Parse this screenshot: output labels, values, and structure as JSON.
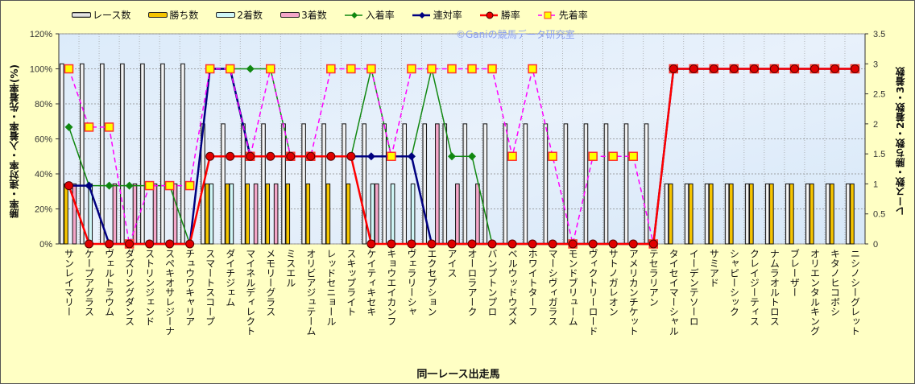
{
  "chart_data": {
    "type": "bar",
    "title": "",
    "watermark": "©Ganiの競馬データ研究室",
    "xlabel": "同一レース出走馬",
    "ylabel_left": "勝率・連対率・入着率・先着率(%)",
    "ylabel_right": "レース数・勝ち数・2着数・3着数",
    "ylim_left": [
      0,
      120
    ],
    "ylim_right": [
      0,
      3.5
    ],
    "yticks_left": [
      "0%",
      "20%",
      "40%",
      "60%",
      "80%",
      "100%",
      "120%"
    ],
    "yticks_right": [
      "0",
      "0.5",
      "1",
      "1.5",
      "2",
      "2.5",
      "3",
      "3.5"
    ],
    "grid": true,
    "legend_position": "top",
    "categories": [
      "サンレイマリー",
      "ケープアグラス",
      "ヴェルトラウム",
      "ダズリングダンス",
      "ストリンジェンド",
      "スペキオサレジーナ",
      "チュウワキャリア",
      "スマートスコープ",
      "ダイチジェム",
      "マイネルディレクト",
      "メモリーグラス",
      "ミスエル",
      "オリビアジュテーム",
      "レッドセニョール",
      "スキップライト",
      "ケイティキセキ",
      "キョウエイカンフ",
      "ヴェラリーシャ",
      "エクセプション",
      "アイス",
      "オーロラアーク",
      "バンプトンプロ",
      "ベルウッドウズメ",
      "ホワイトターフ",
      "マーシヴィガラス",
      "モンドブリューム",
      "ヴィクトリーロード",
      "サトノガレオン",
      "アメリカンチケット",
      "テセラリアン",
      "タイセイマーシャル",
      "イーデンテソーロ",
      "サミアド",
      "シャピーシック",
      "クレイジーティス",
      "ナムラオルトロス",
      "ブレーザー",
      "オリエンタルキング",
      "キタノヒコボシ",
      "ニシノシーグレット"
    ],
    "bar_series": [
      {
        "name": "レース数",
        "axis": "right",
        "color": "#F4F4F4",
        "values": [
          3,
          3,
          3,
          3,
          3,
          3,
          3,
          2,
          2,
          2,
          2,
          2,
          2,
          2,
          2,
          2,
          2,
          2,
          2,
          2,
          2,
          2,
          2,
          2,
          2,
          2,
          2,
          2,
          2,
          2,
          1,
          1,
          1,
          1,
          1,
          1,
          1,
          1,
          1,
          1
        ]
      },
      {
        "name": "勝ち数",
        "axis": "right",
        "color": "#F5C400",
        "values": [
          1,
          0,
          0,
          0,
          0,
          0,
          0,
          1,
          1,
          1,
          1,
          1,
          1,
          1,
          1,
          0,
          0,
          0,
          0,
          0,
          0,
          0,
          0,
          0,
          0,
          0,
          0,
          0,
          0,
          0,
          1,
          1,
          1,
          1,
          1,
          1,
          1,
          1,
          1,
          1
        ]
      },
      {
        "name": "2着数",
        "axis": "right",
        "color": "#CFF6F6",
        "values": [
          0,
          1,
          0,
          0,
          0,
          0,
          0,
          1,
          1,
          0,
          0,
          0,
          0,
          0,
          0,
          1,
          1,
          1,
          0,
          0,
          0,
          0,
          0,
          0,
          0,
          0,
          0,
          0,
          0,
          0,
          0,
          0,
          0,
          0,
          0,
          0,
          0,
          0,
          0,
          0
        ]
      },
      {
        "name": "3着数",
        "axis": "right",
        "color": "#F4A6C8",
        "values": [
          1,
          0,
          1,
          1,
          1,
          1,
          0,
          0,
          0,
          1,
          1,
          0,
          0,
          0,
          0,
          1,
          0,
          0,
          2,
          1,
          1,
          0,
          0,
          0,
          0,
          0,
          0,
          0,
          0,
          0,
          0,
          0,
          0,
          0,
          0,
          0,
          0,
          0,
          0,
          0
        ]
      }
    ],
    "line_series": [
      {
        "name": "入着率",
        "axis": "left",
        "color": "#118811",
        "marker": "diamond",
        "values": [
          66.7,
          33.3,
          33.3,
          33.3,
          33.3,
          33.3,
          0,
          100,
          100,
          100,
          100,
          50,
          50,
          50,
          50,
          100,
          50,
          50,
          100,
          50,
          50,
          0,
          0,
          0,
          0,
          0,
          0,
          0,
          0,
          0,
          100,
          100,
          100,
          100,
          100,
          100,
          100,
          100,
          100,
          100
        ]
      },
      {
        "name": "連対率",
        "axis": "left",
        "color": "#000080",
        "marker": "diamond",
        "values": [
          33.3,
          33.3,
          0,
          0,
          0,
          0,
          0,
          100,
          100,
          50,
          50,
          50,
          50,
          50,
          50,
          50,
          50,
          50,
          0,
          0,
          0,
          0,
          0,
          0,
          0,
          0,
          0,
          0,
          0,
          0,
          100,
          100,
          100,
          100,
          100,
          100,
          100,
          100,
          100,
          100
        ]
      },
      {
        "name": "勝率",
        "axis": "left",
        "color": "#FF0000",
        "marker": "circle",
        "values": [
          33.3,
          0,
          0,
          0,
          0,
          0,
          0,
          50,
          50,
          50,
          50,
          50,
          50,
          50,
          50,
          0,
          0,
          0,
          0,
          0,
          0,
          0,
          0,
          0,
          0,
          0,
          0,
          0,
          0,
          0,
          100,
          100,
          100,
          100,
          100,
          100,
          100,
          100,
          100,
          100
        ]
      },
      {
        "name": "先着率",
        "axis": "left",
        "color": "#FF00FF",
        "marker": "square",
        "values": [
          100,
          66.7,
          66.7,
          0,
          33.3,
          33.3,
          33.3,
          100,
          100,
          50,
          100,
          50,
          50,
          100,
          100,
          100,
          50,
          100,
          100,
          100,
          100,
          100,
          50,
          100,
          50,
          0,
          50,
          50,
          50,
          0,
          100,
          100,
          100,
          100,
          100,
          100,
          100,
          100,
          100,
          100
        ]
      }
    ]
  }
}
